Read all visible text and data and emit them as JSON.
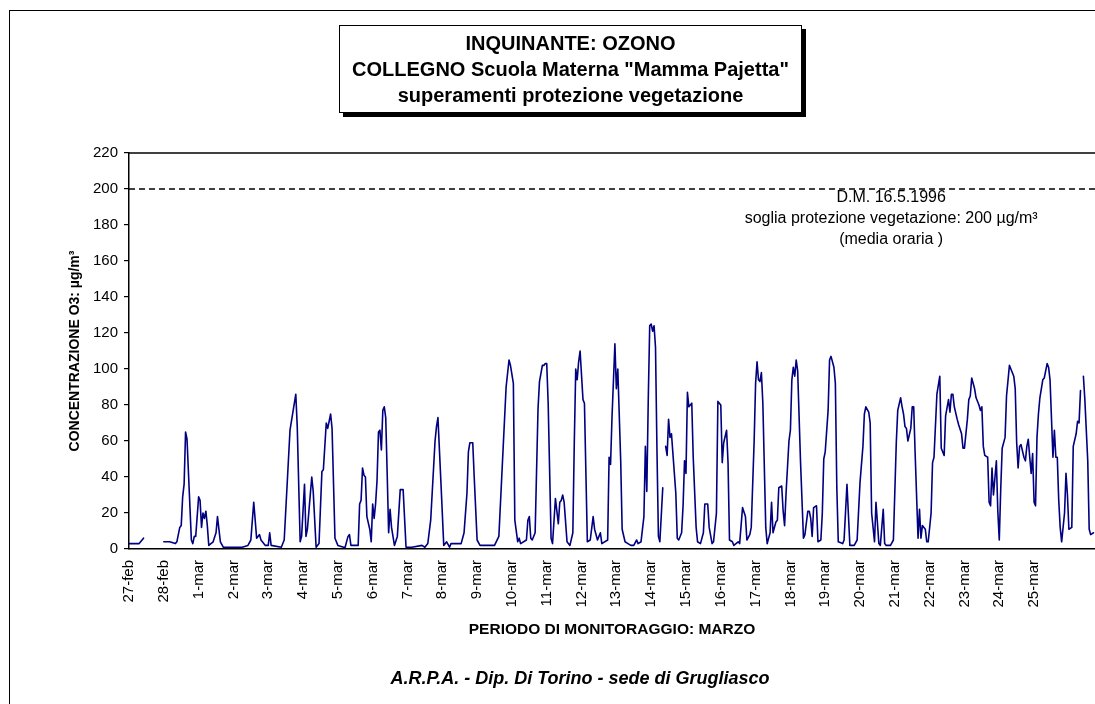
{
  "chart_data": {
    "type": "line",
    "title": "INQUINANTE: OZONO\nCOLLEGNO Scuola Materna \"Mamma Pajetta\"\nsuperamenti protezione vegetazione",
    "xlabel": "PERIODO DI MONITORAGGIO: MARZO",
    "ylabel": "CONCENTRAZIONE O3: µg/m³",
    "x": [
      "--02-27T00:00",
      "--02-27T03:00",
      "--02-27T07:00",
      "--02-27T10:00",
      "--02-27T17:00",
      "--02-28T00:00",
      "--02-28T04:00",
      "--02-28T08:00",
      "--02-28T09:00",
      "--02-28T11:00",
      "--02-28T12:00",
      "--02-28T13:00",
      "--02-28T14:00",
      "--02-28T15:00",
      "--02-28T16:00",
      "--02-28T19:00",
      "--02-28T20:00",
      "--02-28T21:00",
      "--02-28T22:00",
      "--03-01T00:00",
      "--03-01T01:00",
      "--03-01T02:00",
      "--03-01T03:00",
      "--03-01T04:00",
      "--03-01T05:00",
      "--03-01T06:00",
      "--03-01T07:00",
      "--03-01T10:00",
      "--03-01T12:00",
      "--03-01T13:00",
      "--03-01T15:00",
      "--03-01T17:00",
      "--03-02T00:00",
      "--03-02T06:00",
      "--03-02T10:00",
      "--03-02T12:00",
      "--03-02T14:00",
      "--03-02T16:00",
      "--03-02T18:00",
      "--03-02T19:00",
      "--03-02T22:00",
      "--03-03T00:00",
      "--03-03T01:00",
      "--03-03T02:00",
      "--03-03T09:00",
      "--03-03T11:00",
      "--03-03T15:00",
      "--03-03T17:00",
      "--03-03T19:00",
      "--03-03T20:00",
      "--03-03T22:00",
      "--03-03T23:00",
      "--03-04T01:00",
      "--03-04T02:00",
      "--03-04T03:00",
      "--03-04T06:00",
      "--03-04T07:00",
      "--03-04T09:00",
      "--03-04T11:00",
      "--03-04T13:00",
      "--03-04T14:00",
      "--03-04T16:00",
      "--03-04T17:00",
      "--03-04T19:00",
      "--03-04T20:00",
      "--03-04T22:00",
      "--03-05T00:00",
      "--03-05T04:00",
      "--03-05T05:00",
      "--03-05T07:00",
      "--03-05T08:00",
      "--03-05T09:00",
      "--03-05T13:00",
      "--03-05T14:00",
      "--03-05T15:00",
      "--03-05T16:00",
      "--03-05T17:00",
      "--03-05T18:00",
      "--03-05T19:00",
      "--03-05T20:00",
      "--03-05T22:00",
      "--03-05T23:00",
      "--03-06T00:00",
      "--03-06T01:00",
      "--03-06T02:00",
      "--03-06T03:00",
      "--03-06T04:00",
      "--03-06T05:00",
      "--03-06T06:00",
      "--03-06T07:00",
      "--03-06T08:00",
      "--03-06T09:00",
      "--03-06T10:00",
      "--03-06T11:00",
      "--03-06T12:00",
      "--03-06T13:00",
      "--03-06T15:00",
      "--03-06T17:00",
      "--03-06T19:00",
      "--03-06T21:00",
      "--03-06T23:00",
      "--03-07T03:00",
      "--03-07T10:00",
      "--03-07T12:00",
      "--03-07T14:00",
      "--03-07T16:00",
      "--03-07T19:00",
      "--03-07T20:00",
      "--03-07T21:00",
      "--03-07T23:00",
      "--03-08T01:00",
      "--03-08T03:00",
      "--03-08T05:00",
      "--03-08T06:00",
      "--03-08T13:00",
      "--03-08T15:00",
      "--03-08T17:00",
      "--03-08T18:00",
      "--03-08T19:00",
      "--03-08T21:00",
      "--03-08T22:00",
      "--03-09T00:00",
      "--03-09T02:00",
      "--03-09T12:00",
      "--03-09T15:00",
      "--03-09T18:00",
      "--03-09T20:00",
      "--03-09T22:00",
      "--03-09T23:00",
      "--03-10T01:00",
      "--03-10T02:00",
      "--03-10T04:00",
      "--03-10T05:00",
      "--03-10T06:00",
      "--03-10T10:00",
      "--03-10T11:00",
      "--03-10T12:00",
      "--03-10T13:00",
      "--03-10T14:00",
      "--03-10T16:00",
      "--03-10T18:00",
      "--03-10T19:00",
      "--03-10T21:00",
      "--03-10T22:00",
      "--03-10T23:00",
      "--03-11T00:00",
      "--03-11T01:00",
      "--03-11T03:00",
      "--03-11T04:00",
      "--03-11T06:00",
      "--03-11T08:00",
      "--03-11T09:00",
      "--03-11T10:00",
      "--03-11T11:00",
      "--03-11T12:00",
      "--03-11T14:00",
      "--03-11T16:00",
      "--03-11T18:00",
      "--03-11T19:00",
      "--03-11T20:00",
      "--03-11T21:00",
      "--03-11T22:00",
      "--03-11T23:00",
      "--03-12T01:00",
      "--03-12T02:00",
      "--03-12T04:00",
      "--03-12T06:00",
      "--03-12T08:00",
      "--03-12T09:00",
      "--03-12T11:00",
      "--03-12T12:00",
      "--03-12T13:00",
      "--03-12T14:00",
      "--03-12T18:00",
      "--03-12T19:00",
      "--03-12T20:00",
      "--03-12T21:00",
      "--03-12T23:00",
      "--03-13T00:00",
      "--03-13T01:00",
      "--03-13T03:00",
      "--03-13T04:00",
      "--03-13T06:00",
      "--03-13T08:00",
      "--03-13T10:00",
      "--03-13T12:00",
      "--03-13T14:00",
      "--03-13T15:00",
      "--03-13T17:00",
      "--03-13T19:00",
      "--03-13T20:00",
      "--03-13T21:00",
      "--03-13T22:00",
      "--03-13T23:00",
      "--03-14T00:00",
      "--03-14T01:00",
      "--03-14T02:00",
      "--03-14T03:00",
      "--03-14T04:00",
      "--03-14T05:00",
      "--03-14T06:00",
      "--03-14T08:00",
      "--03-14T09:00",
      "--03-14T10:00",
      "--03-14T11:00",
      "--03-14T12:00",
      "--03-14T13:00",
      "--03-14T14:00",
      "--03-14T15:00",
      "--03-14T17:00",
      "--03-14T18:00",
      "--03-14T19:00",
      "--03-14T21:00",
      "--03-14T22:00",
      "--03-14T23:00",
      "--03-15T00:00",
      "--03-15T01:00",
      "--03-15T02:00",
      "--03-15T04:00",
      "--03-15T05:00",
      "--03-15T07:00",
      "--03-15T08:00",
      "--03-15T10:00",
      "--03-15T12:00",
      "--03-15T13:00",
      "--03-15T15:00",
      "--03-15T16:00",
      "--03-15T18:00",
      "--03-15T19:00",
      "--03-15T21:00",
      "--03-15T22:00",
      "--03-16T00:00",
      "--03-16T01:00",
      "--03-16T02:00",
      "--03-16T04:00",
      "--03-16T05:00",
      "--03-16T06:00",
      "--03-16T08:00",
      "--03-16T09:00",
      "--03-16T12:00",
      "--03-16T13:00",
      "--03-16T15:00",
      "--03-16T17:00",
      "--03-16T18:00",
      "--03-16T20:00",
      "--03-16T21:00",
      "--03-16T23:00",
      "--03-17T00:00",
      "--03-17T01:00",
      "--03-17T02:00",
      "--03-17T03:00",
      "--03-17T04:00",
      "--03-17T05:00",
      "--03-17T07:00",
      "--03-17T08:00",
      "--03-17T10:00",
      "--03-17T11:00",
      "--03-17T12:00",
      "--03-17T14:00",
      "--03-17T15:00",
      "--03-17T16:00",
      "--03-17T18:00",
      "--03-17T19:00",
      "--03-17T20:00",
      "--03-17T21:00",
      "--03-17T23:00",
      "--03-18T00:00",
      "--03-18T01:00",
      "--03-18T02:00",
      "--03-18T03:00",
      "--03-18T04:00",
      "--03-18T05:00",
      "--03-18T07:00",
      "--03-18T09:00",
      "--03-18T10:00",
      "--03-18T12:00",
      "--03-18T13:00",
      "--03-18T14:00",
      "--03-18T15:00",
      "--03-18T16:00",
      "--03-18T18:00",
      "--03-18T19:00",
      "--03-18T21:00",
      "--03-18T22:00",
      "--03-18T23:00",
      "--03-19T00:00",
      "--03-19T02:00",
      "--03-19T03:00",
      "--03-19T04:00",
      "--03-19T06:00",
      "--03-19T07:00",
      "--03-19T08:00",
      "--03-19T09:00",
      "--03-19T12:00",
      "--03-19T13:00",
      "--03-19T15:00",
      "--03-19T17:00",
      "--03-19T20:00",
      "--03-19T22:00",
      "--03-20T00:00",
      "--03-20T02:00",
      "--03-20T03:00",
      "--03-20T04:00",
      "--03-20T06:00",
      "--03-20T07:00",
      "--03-20T08:00",
      "--03-20T10:00",
      "--03-20T11:00",
      "--03-20T13:00",
      "--03-20T14:00",
      "--03-20T16:00",
      "--03-20T17:00",
      "--03-20T18:00",
      "--03-20T21:00",
      "--03-20T23:00",
      "--03-21T01:00",
      "--03-21T02:00",
      "--03-21T04:00",
      "--03-21T05:00",
      "--03-21T06:00",
      "--03-21T07:00",
      "--03-21T08:00",
      "--03-21T09:00",
      "--03-21T11:00",
      "--03-21T12:00",
      "--03-21T13:00",
      "--03-21T14:00",
      "--03-21T16:00",
      "--03-21T17:00",
      "--03-21T18:00",
      "--03-21T19:00",
      "--03-21T21:00",
      "--03-21T22:00",
      "--03-21T23:00",
      "--03-22T01:00",
      "--03-22T02:00",
      "--03-22T03:00",
      "--03-22T05:00",
      "--03-22T06:00",
      "--03-22T07:00",
      "--03-22T08:00",
      "--03-22T10:00",
      "--03-22T11:00",
      "--03-22T13:00",
      "--03-22T14:00",
      "--03-22T15:00",
      "--03-22T16:00",
      "--03-22T17:00",
      "--03-22T19:00",
      "--03-22T20:00",
      "--03-22T22:00",
      "--03-22T23:00",
      "--03-23T00:00",
      "--03-23T02:00",
      "--03-23T03:00",
      "--03-23T04:00",
      "--03-23T05:00",
      "--03-23T07:00",
      "--03-23T08:00",
      "--03-23T10:00",
      "--03-23T11:00",
      "--03-23T12:00",
      "--03-23T13:00",
      "--03-23T14:00",
      "--03-23T16:00",
      "--03-23T17:00",
      "--03-23T18:00",
      "--03-23T19:00",
      "--03-23T20:00",
      "--03-23T22:00",
      "--03-23T23:00",
      "--03-24T00:00",
      "--03-24T01:00",
      "--03-24T02:00",
      "--03-24T04:00",
      "--03-24T05:00",
      "--03-24T07:00",
      "--03-24T08:00",
      "--03-24T10:00",
      "--03-24T11:00",
      "--03-24T12:00",
      "--03-24T13:00",
      "--03-24T14:00",
      "--03-24T15:00",
      "--03-24T17:00",
      "--03-24T18:00",
      "--03-24T19:00",
      "--03-24T20:00",
      "--03-24T21:00",
      "--03-24T22:00",
      "--03-24T23:00",
      "--03-25T00:00",
      "--03-25T01:00",
      "--03-25T02:00",
      "--03-25T03:00",
      "--03-25T04:00",
      "--03-25T06:00",
      "--03-25T07:00",
      "--03-25T08:00",
      "--03-25T09:00",
      "--03-25T10:00",
      "--03-25T11:00",
      "--03-25T13:00",
      "--03-25T14:00",
      "--03-25T15:00",
      "--03-25T16:00",
      "--03-25T17:00",
      "--03-25T18:00",
      "--03-25T19:00",
      "--03-25T21:00",
      "--03-25T22:00",
      "--03-25T23:00",
      "--03-26T00:00",
      "--03-26T02:00",
      "--03-26T03:00",
      "--03-26T05:00",
      "--03-26T06:00",
      "--03-26T07:00",
      "--03-26T08:00",
      "--03-26T09:00",
      "--03-26T10:00",
      "--03-26T11:00",
      "--03-26T13:00",
      "--03-26T14:00",
      "--03-26T15:00",
      "--03-26T17:00"
    ],
    "values": [
      3,
      3,
      3,
      6,
      null,
      4,
      4,
      3,
      4,
      12,
      13,
      29,
      36,
      65,
      61,
      5,
      3,
      7,
      7,
      29,
      27,
      12,
      20,
      17,
      21,
      13,
      2,
      4,
      9,
      18,
      4,
      1,
      1,
      1,
      2,
      5,
      26,
      6,
      8,
      5,
      2,
      2,
      9,
      2,
      1,
      5,
      66,
      76,
      86,
      68,
      4,
      7,
      36,
      7,
      11,
      40,
      32,
      1,
      3,
      43,
      44,
      70,
      67,
      75,
      67,
      6,
      2,
      1,
      1,
      7,
      8,
      2,
      2,
      2,
      25,
      27,
      45,
      41,
      40,
      18,
      11,
      4,
      25,
      17,
      25,
      38,
      65,
      66,
      55,
      77,
      79,
      73,
      42,
      9,
      22,
      12,
      2,
      7,
      33,
      33,
      1,
      1,
      2,
      1,
      3,
      16,
      60,
      68,
      73,
      38,
      2,
      4,
      1,
      3,
      3,
      9,
      31,
      54,
      59,
      59,
      40,
      5,
      2,
      2,
      7,
      57,
      90,
      105,
      102,
      92,
      16,
      4,
      6,
      3,
      5,
      16,
      18,
      6,
      5,
      9,
      78,
      93,
      102,
      102,
      103,
      103,
      81,
      6,
      3,
      28,
      14,
      26,
      27,
      30,
      26,
      4,
      2,
      9,
      59,
      100,
      94,
      104,
      110,
      83,
      81,
      4,
      5,
      18,
      11,
      5,
      7,
      9,
      3,
      5,
      51,
      47,
      73,
      114,
      89,
      100,
      49,
      11,
      4,
      3,
      2,
      2,
      5,
      3,
      4,
      18,
      57,
      32,
      83,
      124,
      125,
      121,
      124,
      112,
      55,
      7,
      4,
      34,
      null,
      57,
      52,
      72,
      62,
      64,
      53,
      31,
      6,
      5,
      9,
      24,
      49,
      42,
      87,
      79,
      81,
      51,
      12,
      4,
      3,
      9,
      25,
      25,
      12,
      3,
      4,
      20,
      82,
      80,
      48,
      59,
      66,
      48,
      5,
      4,
      2,
      4,
      3,
      23,
      18,
      5,
      8,
      12,
      60,
      92,
      104,
      94,
      93,
      98,
      81,
      12,
      3,
      9,
      26,
      9,
      15,
      16,
      34,
      35,
      21,
      13,
      31,
      60,
      66,
      94,
      101,
      96,
      105,
      99,
      48,
      6,
      8,
      21,
      21,
      17,
      7,
      23,
      24,
      4,
      5,
      20,
      50,
      54,
      77,
      105,
      107,
      101,
      92,
      34,
      4,
      3,
      5,
      36,
      2,
      2,
      5,
      37,
      57,
      75,
      79,
      76,
      70,
      20,
      4,
      26,
      3,
      2,
      22,
      3,
      2,
      2,
      5,
      59,
      77,
      84,
      79,
      75,
      68,
      67,
      60,
      67,
      79,
      79,
      53,
      6,
      22,
      6,
      13,
      11,
      4,
      4,
      20,
      48,
      51,
      86,
      91,
      96,
      56,
      52,
      74,
      83,
      76,
      86,
      86,
      79,
      72,
      69,
      64,
      56,
      56,
      72,
      83,
      85,
      95,
      89,
      84,
      80,
      77,
      79,
      57,
      52,
      51,
      26,
      24,
      45,
      30,
      49,
      21,
      5,
      33,
      56,
      62,
      85,
      102,
      100,
      96,
      89,
      59,
      45,
      57,
      58,
      51,
      49,
      57,
      61,
      51,
      42,
      53,
      26,
      24,
      62,
      75,
      84,
      94,
      95,
      99,
      103,
      101,
      94,
      51,
      66,
      51,
      51,
      27,
      12,
      4,
      20,
      42,
      30,
      11,
      12,
      57,
      64,
      71,
      70,
      88,
      null,
      96,
      83,
      49,
      11,
      8,
      9
    ],
    "color": "#000080",
    "marker": "none",
    "grid": false,
    "legend": false,
    "xlim": [
      "--02-27T00:00",
      "--03-26T18:00"
    ],
    "xticks": [
      {
        "value": "--02-27",
        "label": "27-feb"
      },
      {
        "value": "--02-28",
        "label": "28-feb"
      },
      {
        "value": "--03-01",
        "label": "1-mar"
      },
      {
        "value": "--03-02",
        "label": "2-mar"
      },
      {
        "value": "--03-03",
        "label": "3-mar"
      },
      {
        "value": "--03-04",
        "label": "4-mar"
      },
      {
        "value": "--03-05",
        "label": "5-mar"
      },
      {
        "value": "--03-06",
        "label": "6-mar"
      },
      {
        "value": "--03-07",
        "label": "7-mar"
      },
      {
        "value": "--03-08",
        "label": "8-mar"
      },
      {
        "value": "--03-09",
        "label": "9-mar"
      },
      {
        "value": "--03-10",
        "label": "10-mar"
      },
      {
        "value": "--03-11",
        "label": "11-mar"
      },
      {
        "value": "--03-12",
        "label": "12-mar"
      },
      {
        "value": "--03-13",
        "label": "13-mar"
      },
      {
        "value": "--03-14",
        "label": "14-mar"
      },
      {
        "value": "--03-15",
        "label": "15-mar"
      },
      {
        "value": "--03-16",
        "label": "16-mar"
      },
      {
        "value": "--03-17",
        "label": "17-mar"
      },
      {
        "value": "--03-18",
        "label": "18-mar"
      },
      {
        "value": "--03-19",
        "label": "19-mar"
      },
      {
        "value": "--03-20",
        "label": "20-mar"
      },
      {
        "value": "--03-21",
        "label": "21-mar"
      },
      {
        "value": "--03-22",
        "label": "22-mar"
      },
      {
        "value": "--03-23",
        "label": "23-mar"
      },
      {
        "value": "--03-24",
        "label": "24-mar"
      },
      {
        "value": "--03-25",
        "label": "25-mar"
      }
    ],
    "ylim": [
      0,
      220
    ],
    "yticks": [
      0,
      20,
      40,
      60,
      80,
      100,
      120,
      140,
      160,
      180,
      200,
      220
    ],
    "ref_lines": [
      {
        "axis": "y",
        "value": 200,
        "label": "D.M. 16.5.1996\nsoglia protezione vegetazione: 200 µg/m³\n(media oraria )",
        "color": "#000000",
        "line_style": "dashed"
      }
    ],
    "annotations": [
      "A.R.P.A. - Dip. Di Torino - sede di Grugliasco"
    ]
  }
}
